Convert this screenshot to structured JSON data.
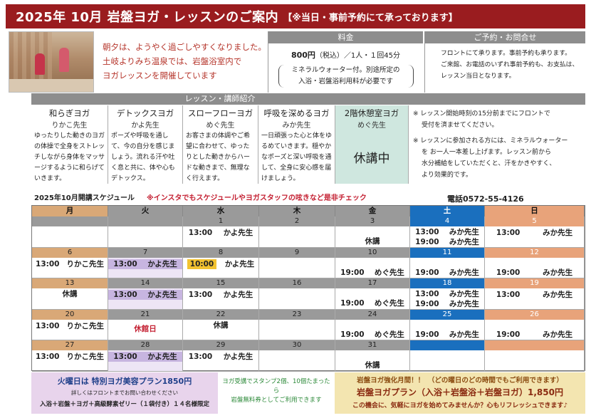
{
  "header": {
    "title": "2025年 10月 岩盤ヨガ・レッスンのご案内",
    "subtitle": "【※当日・事前予約にて承っております】"
  },
  "intro": {
    "lines": [
      "朝夕は、ようやく過ごしやすくなりました。",
      "土岐よりみち温泉では、岩盤浴室内で",
      "ヨガレッスンを開催しています"
    ]
  },
  "price": {
    "heading": "料金",
    "amount": "800円",
    "tax": "（税込）",
    "unit": "／1人・１回45分",
    "note1": "ミネラルウォーター付。別途所定の",
    "note2": "入浴・岩盤浴利用料が必要です"
  },
  "reserve": {
    "heading": "ご予約・お問合せ",
    "lines": [
      "フロントにて承ります。事前予約も承ります。",
      "ご来館、お電話のいずれ事前予約も、お支払は、",
      "レッスン当日となります。"
    ]
  },
  "instructors": {
    "heading": "レッスン・講師紹介",
    "items": [
      {
        "name": "和らぎヨガ",
        "teacher": "りかこ先生",
        "desc": "ゆったりした動きのヨガの体操で全身をストレッチしながら身体をマッサージするように和らげていきます。"
      },
      {
        "name": "デトックスヨガ",
        "teacher": "かよ先生",
        "desc": "ポーズや呼吸を通して、今の自分を感じましょう。流れる汗や吐く息と共に、体や心もデトックス。"
      },
      {
        "name": "スローフローヨガ",
        "teacher": "めぐ先生",
        "desc": "お客さまの体調やご希望に合わせて、ゆったりとした動きからハードな動きまで、無理なく行えます。"
      },
      {
        "name": "呼吸を深めるヨガ",
        "teacher": "みか先生",
        "desc": "一日頑張った心と体をゆるめていきます。穏やかなポーズと深い呼吸を通して、全身に安心感を届けましょう。"
      },
      {
        "name": "2階休憩室ヨガ",
        "teacher": "めぐ先生",
        "desc": "休講中"
      }
    ],
    "notes": [
      "※ レッスン開始時刻の15分前までにフロントで",
      "受付を済ませてください。",
      "※ レッスンに参加される方には、ミネラルウォーター",
      "を お一人一本差し上げます。レッスン前から",
      "水分補給をしていただくと、汗をかきやすく、",
      "より効果的です。"
    ]
  },
  "schedule": {
    "title": "2025年10月開講スケジュール",
    "note": "※インスタでもスケジュールやヨガスタッフの呟きなど是非チェック",
    "phone": "電話0572-55-4126",
    "days": [
      "月",
      "火",
      "水",
      "木",
      "金",
      "土",
      "日"
    ],
    "weeks": [
      [
        {
          "d": "",
          "e": []
        },
        {
          "d": "",
          "e": []
        },
        {
          "d": "1",
          "e": [
            [
              "13:00",
              "かよ先生"
            ]
          ]
        },
        {
          "d": "2",
          "e": []
        },
        {
          "d": "3",
          "e": [
            [
              "",
              "休講"
            ]
          ]
        },
        {
          "d": "4",
          "e": [
            [
              "13:00",
              "みか先生"
            ],
            [
              "19:00",
              "みか先生"
            ]
          ]
        },
        {
          "d": "5",
          "e": [
            [
              "13:00",
              "みか先生"
            ]
          ]
        }
      ],
      [
        {
          "d": "6",
          "e": [
            [
              "13:00",
              "りかこ先生"
            ]
          ]
        },
        {
          "d": "7",
          "e": [
            [
              "13:00",
              "かよ先生"
            ]
          ]
        },
        {
          "d": "8",
          "e": [
            [
              "10:00",
              "かよ先生"
            ]
          ]
        },
        {
          "d": "9",
          "e": []
        },
        {
          "d": "10",
          "e": [
            [
              "19:00",
              "めぐ先生"
            ]
          ]
        },
        {
          "d": "11",
          "e": [
            [
              "19:00",
              "みか先生"
            ]
          ]
        },
        {
          "d": "12",
          "e": [
            [
              "19:00",
              "みか先生"
            ]
          ]
        }
      ],
      [
        {
          "d": "13",
          "e": [
            [
              "",
              "休講"
            ]
          ]
        },
        {
          "d": "14",
          "e": [
            [
              "13:00",
              "かよ先生"
            ]
          ]
        },
        {
          "d": "15",
          "e": [
            [
              "13:00",
              "かよ先生"
            ]
          ]
        },
        {
          "d": "16",
          "e": []
        },
        {
          "d": "17",
          "e": [
            [
              "19:00",
              "めぐ先生"
            ]
          ]
        },
        {
          "d": "18",
          "e": [
            [
              "13:00",
              "みか先生"
            ],
            [
              "19:00",
              "みか先生"
            ]
          ]
        },
        {
          "d": "19",
          "e": [
            [
              "13:00",
              "みか先生"
            ]
          ]
        }
      ],
      [
        {
          "d": "20",
          "e": [
            [
              "13:00",
              "りかこ先生"
            ]
          ]
        },
        {
          "d": "21",
          "e": [
            [
              "",
              "休館日"
            ]
          ]
        },
        {
          "d": "22",
          "e": [
            [
              "",
              "休講"
            ]
          ]
        },
        {
          "d": "23",
          "e": []
        },
        {
          "d": "24",
          "e": [
            [
              "19:00",
              "めぐ先生"
            ]
          ]
        },
        {
          "d": "25",
          "e": [
            [
              "19:00",
              "みか先生"
            ]
          ]
        },
        {
          "d": "26",
          "e": [
            [
              "19:00",
              "みか先生"
            ]
          ]
        }
      ],
      [
        {
          "d": "27",
          "e": [
            [
              "13:00",
              "りかこ先生"
            ]
          ]
        },
        {
          "d": "28",
          "e": [
            [
              "13:00",
              "かよ先生"
            ]
          ]
        },
        {
          "d": "29",
          "e": [
            [
              "13:00",
              "かよ先生"
            ]
          ]
        },
        {
          "d": "30",
          "e": []
        },
        {
          "d": "31",
          "e": [
            [
              "",
              "休講"
            ]
          ]
        },
        {
          "d": "",
          "e": []
        },
        {
          "d": "",
          "e": []
        }
      ]
    ]
  },
  "footer": {
    "tuesday_title": "火曜日は 特別ヨガ美容プラン1850円",
    "tuesday_sub": "詳しくはフロントまでお問い合わせください",
    "tuesday_plan": "入浴＋岩盤＋ヨガ＋高級酵素ゼリー（１袋付き）１４名様限定",
    "stamp_line1": "ヨガ受講でスタンプ2個、10個たまったら",
    "stamp_line2": "岩盤無料券としてご利用できます",
    "promo_title": "岩盤ヨガ強化月間！！　（どの曜日のどの時間でもご利用できます）",
    "promo_plan": "岩盤ヨガプラン（入浴＋岩盤浴＋岩盤ヨガ）1,850円",
    "promo_note": "この機会に、気軽にヨガを始めてみませんか？心もリフレッシュできます♪"
  },
  "colors": {
    "header": "#9a1c1f",
    "monday": "#d9a877",
    "tuesday_highlight": "#c7b5e0",
    "saturday": "#1a6fbe",
    "sunday": "#e8a37a",
    "gray": "#9a9a9a",
    "highlight_10am": "#f2c230"
  }
}
